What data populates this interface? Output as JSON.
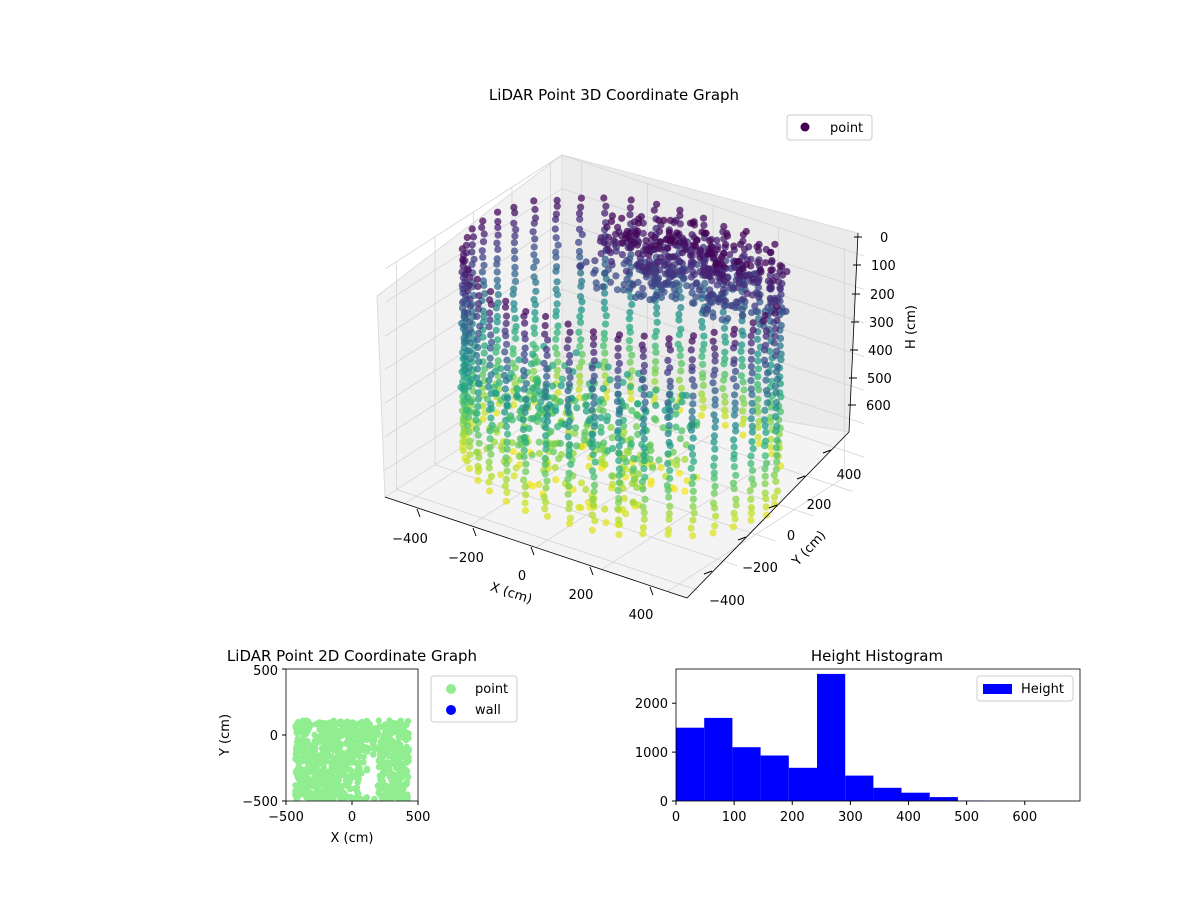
{
  "chart_data": [
    {
      "type": "scatter",
      "projection": "3d",
      "title": "LiDAR Point 3D Coordinate Graph",
      "xlabel": "X (cm)",
      "ylabel": "Y (cm)",
      "zlabel": "H (cm)",
      "x_ticks": [
        -400,
        -200,
        0,
        200,
        400
      ],
      "x_tick_labels": [
        "−400",
        "−200",
        "0",
        "200",
        "400"
      ],
      "y_ticks": [
        -400,
        -200,
        0,
        200,
        400
      ],
      "y_tick_labels": [
        "−400",
        "−200",
        "0",
        "200",
        "400"
      ],
      "z_ticks": [
        0,
        100,
        200,
        300,
        400,
        500,
        600
      ],
      "z_tick_labels": [
        "0",
        "100",
        "200",
        "300",
        "400",
        "500",
        "600"
      ],
      "xlim": [
        -460,
        460
      ],
      "ylim": [
        -460,
        460
      ],
      "zlim": [
        0,
        680
      ],
      "z_axis_inverted": true,
      "colormap": "viridis",
      "grid": true,
      "legend": {
        "placement": "top-right",
        "entries": [
          {
            "label": "point",
            "color": "#440154"
          }
        ]
      },
      "shape": {
        "description_points": "cloud of a roughly cylindrical room wall: points along the wall at heights 0-600 cm, with roof points near H 0-200",
        "wall_radius": 430,
        "height_range": [
          0,
          620
        ]
      }
    },
    {
      "type": "scatter",
      "title": "LiDAR Point 2D Coordinate Graph",
      "xlabel": "X (cm)",
      "ylabel": "Y (cm)",
      "xlim": [
        -500,
        500
      ],
      "ylim": [
        -500,
        500
      ],
      "x_ticks": [
        -500,
        0,
        500
      ],
      "x_tick_labels": [
        "−500",
        "0",
        "500"
      ],
      "y_ticks": [
        -500,
        0,
        500
      ],
      "y_tick_labels": [
        "−500",
        "0",
        "500"
      ],
      "legend": {
        "placement": "outside-right",
        "entries": [
          {
            "label": "point",
            "color": "#90ee90"
          },
          {
            "label": "wall",
            "color": "#0000ff"
          }
        ]
      },
      "point_region": {
        "x_range": [
          -430,
          430
        ],
        "y_range": [
          -500,
          110
        ]
      }
    },
    {
      "type": "bar",
      "histogram": true,
      "title": "Height Histogram",
      "xlim": [
        0,
        695
      ],
      "ylim": [
        0,
        2700
      ],
      "x_ticks": [
        0,
        100,
        200,
        300,
        400,
        500,
        600
      ],
      "y_ticks": [
        0,
        1000,
        2000
      ],
      "bin_edges": [
        0,
        48.5,
        97,
        145.5,
        194,
        242.5,
        291,
        339.5,
        388,
        436.5,
        485,
        533.5,
        582,
        630.5,
        679
      ],
      "values": [
        1500,
        1700,
        1100,
        930,
        680,
        2600,
        520,
        270,
        170,
        80,
        8,
        5,
        3,
        2
      ],
      "series": [
        {
          "name": "Height",
          "color": "#0000ff"
        }
      ],
      "legend": {
        "placement": "top-right",
        "entries": [
          {
            "label": "Height",
            "color": "#0000ff"
          }
        ]
      }
    }
  ]
}
